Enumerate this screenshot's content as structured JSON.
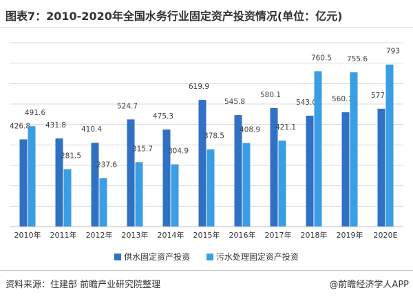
{
  "title": "图表7：2010-2020年全国水务行业固定资产投资情况(单位：亿元)",
  "source": "资料来源：住建部 前瞻产业研究院整理",
  "brand": "@前瞻经济学人APP",
  "colors": {
    "series1": "#3071c4",
    "series2": "#3b9de4",
    "grid": "#d9d9d9",
    "axis": "#bfbfbf",
    "label": "#404040"
  },
  "chart_data": {
    "type": "bar",
    "title": "图表7：2010-2020年全国水务行业固定资产投资情况(单位：亿元)",
    "xlabel": "",
    "ylabel": "",
    "ylim": [
      0,
      900
    ],
    "grid": true,
    "legend": "bottom",
    "categories": [
      "2010年",
      "2011年",
      "2012年",
      "2013年",
      "2014年",
      "2015年",
      "2016年",
      "2017年",
      "2018年",
      "2019年",
      "2020E"
    ],
    "series": [
      {
        "name": "供水固定资产投资",
        "values": [
          426.8,
          431.8,
          410.4,
          524.7,
          475.3,
          619.9,
          545.8,
          580.1,
          543.0,
          560.1,
          577
        ],
        "labels": [
          "426.8",
          "431.8",
          "410.4",
          "524.7",
          "475.3",
          "619.9",
          "545.8",
          "580.1",
          "543.0",
          "560.1",
          "577"
        ]
      },
      {
        "name": "污水处理固定资产投资",
        "values": [
          491.6,
          281.5,
          237.6,
          315.7,
          304.9,
          378.5,
          408.9,
          421.1,
          760.5,
          755.6,
          793
        ],
        "labels": [
          "491.6",
          "281.5",
          "237.6",
          "315.7",
          "304.9",
          "378.5",
          "408.9",
          "421.1",
          "760.5",
          "755.6",
          "793"
        ]
      }
    ]
  }
}
